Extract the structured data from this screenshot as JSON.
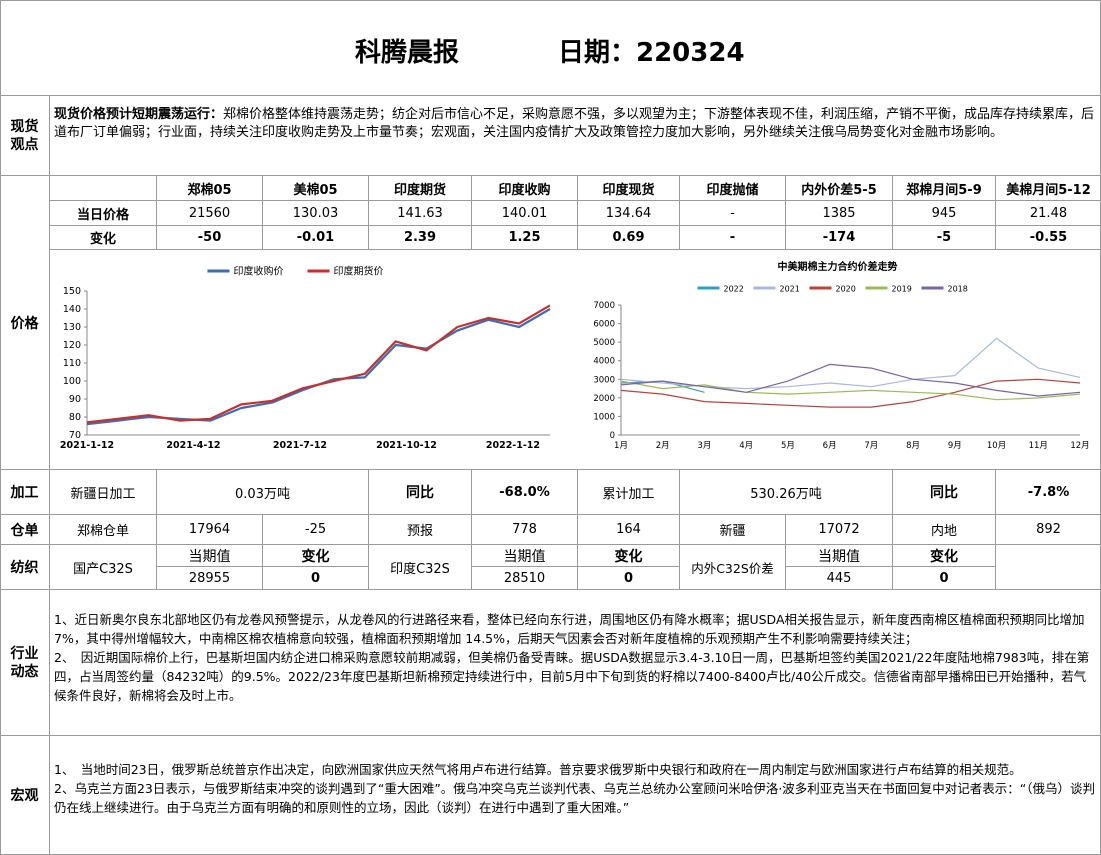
{
  "header": {
    "title": "科腾晨报",
    "date_label": "日期：220324"
  },
  "sections": {
    "spot": "现货观点",
    "price": "价格",
    "processing": "加工",
    "warehouse": "仓单",
    "textile": "纺织",
    "industry": "行业动态",
    "macro": "宏观"
  },
  "spot_view": {
    "lead": "现货价格预计短期震荡运行：",
    "body": "郑棉价格整体维持震荡走势；纺企对后市信心不足，采购意愿不强，多以观望为主；下游整体表现不佳，利润压缩，产销不平衡，成品库存持续累库，后道布厂订单偏弱；行业面，持续关注印度收购走势及上市量节奏；宏观面，关注国内疫情扩大及政策管控力度加大影响，另外继续关注俄乌局势变化对金融市场影响。"
  },
  "price_table": {
    "headers": [
      "郑棉05",
      "美棉05",
      "印度期货",
      "印度收购",
      "印度现货",
      "印度抛储",
      "内外价差5-5",
      "郑棉月间5-9",
      "美棉月间5-12"
    ],
    "row1_label": "当日价格",
    "row1": [
      "21560",
      "130.03",
      "141.63",
      "140.01",
      "134.64",
      "-",
      "1385",
      "945",
      "21.48"
    ],
    "row2_label": "变化",
    "row2": [
      "-50",
      "-0.01",
      "2.39",
      "1.25",
      "0.69",
      "-",
      "-174",
      "-5",
      "-0.55"
    ]
  },
  "chart_data": [
    {
      "type": "line",
      "title": "",
      "legend": [
        "印度收购价",
        "印度期货价"
      ],
      "legend_position": "top",
      "ylim": [
        70,
        150
      ],
      "yticks": [
        70,
        80,
        90,
        100,
        110,
        120,
        130,
        140,
        150
      ],
      "xticks": [
        "2021-1-12",
        "2021-4-12",
        "2021-7-12",
        "2021-10-12",
        "2022-1-12"
      ],
      "x": [
        "2021-01-12",
        "2021-02-12",
        "2021-03-12",
        "2021-04-12",
        "2021-05-12",
        "2021-06-12",
        "2021-07-12",
        "2021-08-12",
        "2021-09-12",
        "2021-10-12",
        "2021-11-12",
        "2021-12-12",
        "2022-01-12",
        "2022-02-12",
        "2022-03-12",
        "2022-03-24"
      ],
      "series": [
        {
          "name": "印度收购价",
          "color": "#3a6fb8",
          "values": [
            76,
            78,
            80,
            79,
            78,
            85,
            88,
            95,
            101,
            102,
            120,
            118,
            128,
            134,
            130,
            140
          ]
        },
        {
          "name": "印度期货价",
          "color": "#c9302c",
          "values": [
            77,
            79,
            81,
            78,
            79,
            87,
            89,
            96,
            100,
            104,
            122,
            117,
            130,
            135,
            132,
            142
          ]
        }
      ],
      "grid": false
    },
    {
      "type": "line",
      "title": "中美期棉主力合约价差走势",
      "legend": [
        "2022",
        "2021",
        "2020",
        "2019",
        "2018"
      ],
      "legend_position": "top",
      "ylim": [
        0,
        7000
      ],
      "yticks": [
        0,
        1000,
        2000,
        3000,
        4000,
        5000,
        6000,
        7000
      ],
      "xticks": [
        "1月",
        "2月",
        "3月",
        "4月",
        "5月",
        "6月",
        "7月",
        "8月",
        "9月",
        "10月",
        "11月",
        "12月"
      ],
      "x": [
        "1月",
        "2月",
        "3月",
        "4月",
        "5月",
        "6月",
        "7月",
        "8月",
        "9月",
        "10月",
        "11月",
        "12月"
      ],
      "series": [
        {
          "name": "2022",
          "color": "#2f9fc7",
          "values": [
            2800,
            2900,
            2300,
            null,
            null,
            null,
            null,
            null,
            null,
            null,
            null,
            null
          ]
        },
        {
          "name": "2021",
          "color": "#a9b8dc",
          "values": [
            3000,
            2800,
            2600,
            2500,
            2600,
            2800,
            2600,
            3000,
            3200,
            5200,
            3600,
            3100
          ]
        },
        {
          "name": "2020",
          "color": "#b9423b",
          "values": [
            2400,
            2200,
            1800,
            1700,
            1600,
            1500,
            1500,
            1800,
            2300,
            2900,
            3000,
            2800
          ]
        },
        {
          "name": "2019",
          "color": "#9bbb59",
          "values": [
            2900,
            2500,
            2700,
            2300,
            2200,
            2300,
            2400,
            2300,
            2200,
            1900,
            2000,
            2200
          ]
        },
        {
          "name": "2018",
          "color": "#7b63a8",
          "values": [
            2700,
            2900,
            2600,
            2300,
            2900,
            3800,
            3600,
            3000,
            2800,
            2400,
            2100,
            2300
          ]
        }
      ],
      "grid": false
    }
  ],
  "processing": {
    "xinjiang_label": "新疆日加工",
    "xinjiang_value": "0.03万吨",
    "yoy_label_1": "同比",
    "yoy_value_1": "-68.0%",
    "cum_label": "累计加工",
    "cum_value": "530.26万吨",
    "yoy_label_2": "同比",
    "yoy_value_2": "-7.8%"
  },
  "warehouse": {
    "zc_label": "郑棉仓单",
    "zc_value": "17964",
    "zc_change": "-25",
    "forecast_label": "预报",
    "forecast_value": "778",
    "forecast_change": "164",
    "xj_label": "新疆",
    "xj_value": "17072",
    "inland_label": "内地",
    "inland_value": "892"
  },
  "textile": {
    "cur_label": "当期值",
    "chg_label": "变化",
    "domestic_label": "国产C32S",
    "domestic_value": "28955",
    "domestic_change": "0",
    "india_label": "印度C32S",
    "india_value": "28510",
    "india_change": "0",
    "spread_label": "内外C32S价差",
    "spread_value": "445",
    "spread_change": "0"
  },
  "industry_news": {
    "p1": "1、近日新奥尔良东北部地区仍有龙卷风预警提示，从龙卷风的行进路径来看，整体已经向东行进，周围地区仍有降水概率；据USDA相关报告显示，新年度西南棉区植棉面积预期同比增加7%，其中得州增幅较大，中南棉区棉农植棉意向较强，植棉面积预期增加 14.5%，后期天气因素会否对新年度植棉的乐观预期产生不利影响需要持续关注；",
    "p2": "2、　因近期国际棉价上行，巴基斯坦国内纺企进口棉采购意愿较前期减弱，但美棉仍备受青睐。据USDA数据显示3.4-3.10日一周，巴基斯坦签约美国2021/22年度陆地棉7983吨，排在第四，占当周签约量（84232吨）的9.5%。2022/23年度巴基斯坦新棉预定持续进行中，目前5月中下旬到货的籽棉以7400-8400卢比/40公斤成交。信德省南部早播棉田已开始播种，若气候条件良好，新棉将会及时上市。"
  },
  "macro_news": {
    "p1": "1、　当地时间23日，俄罗斯总统普京作出决定，向欧洲国家供应天然气将用卢布进行结算。普京要求俄罗斯中央银行和政府在一周内制定与欧洲国家进行卢布结算的相关规范。",
    "p2": "2、乌克兰方面23日表示，与俄罗斯结束冲突的谈判遇到了“重大困难”。俄乌冲突乌克兰谈判代表、乌克兰总统办公室顾问米哈伊洛·波多利亚克当天在书面回复中对记者表示：“（俄乌）谈判仍在线上继续进行。由于乌克兰方面有明确的和原则性的立场，因此（谈判）在进行中遇到了重大困难。”"
  }
}
